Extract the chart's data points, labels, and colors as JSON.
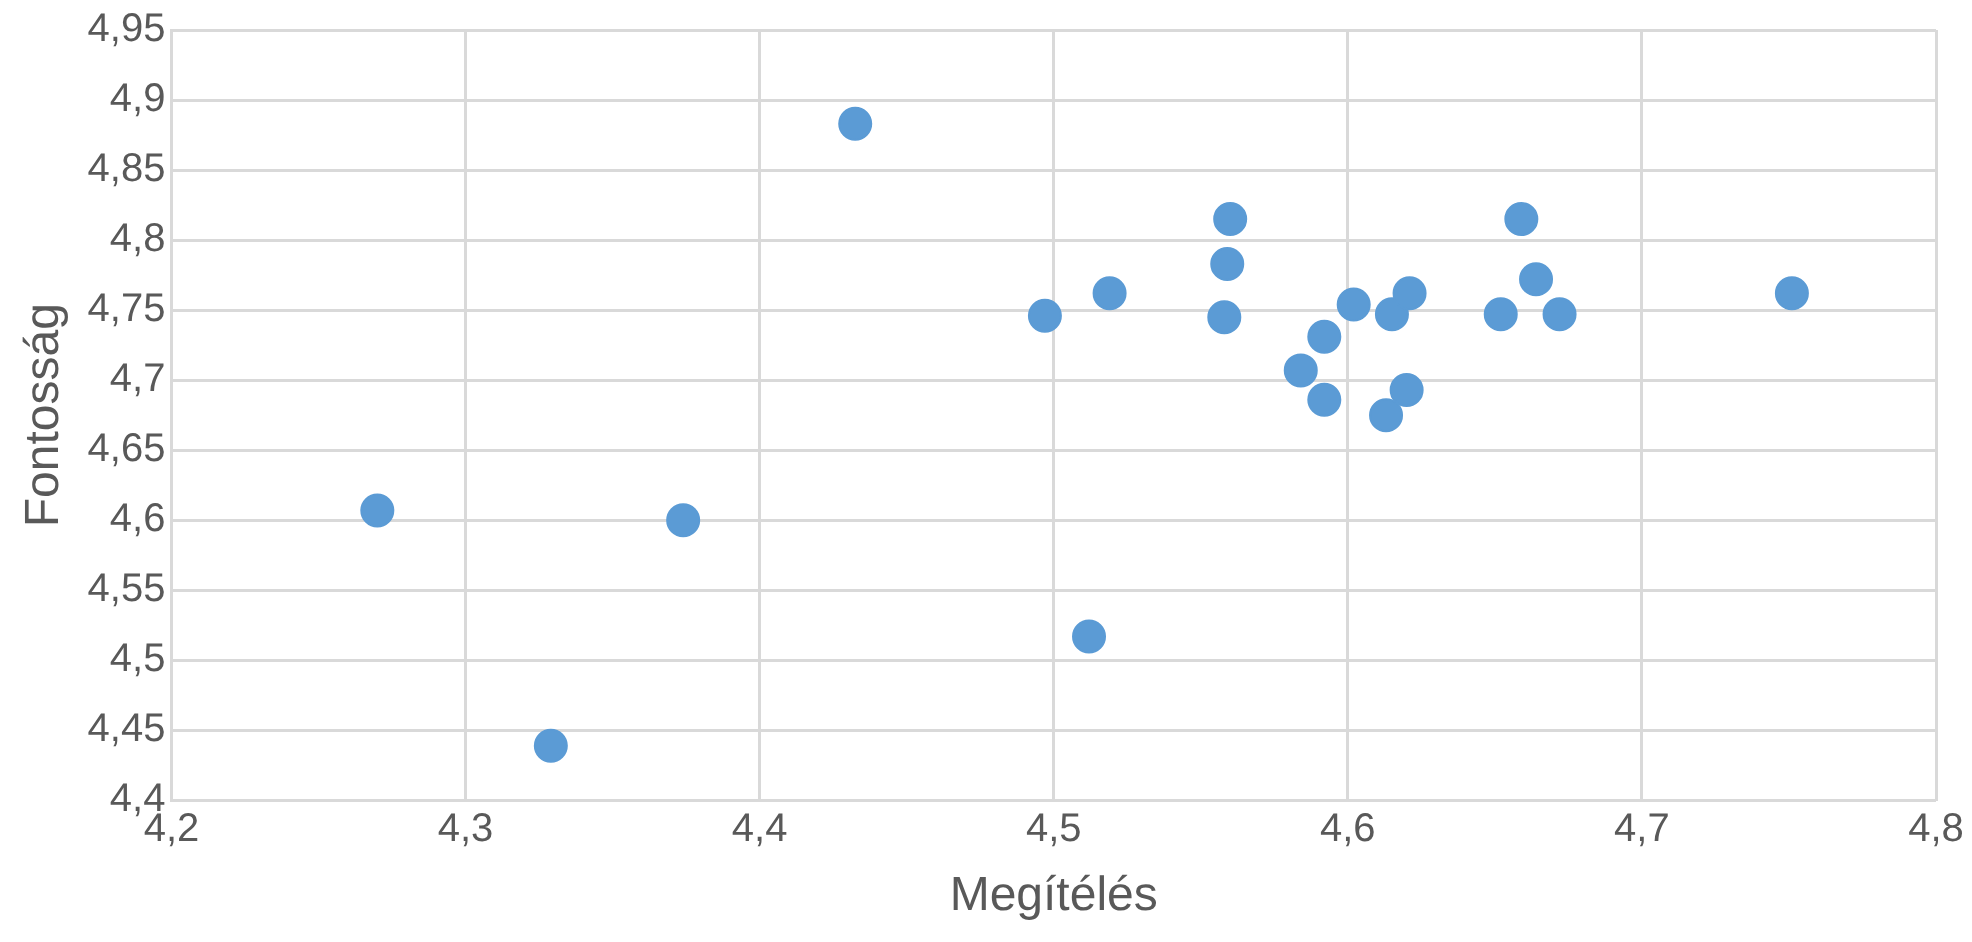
{
  "chart_data": {
    "type": "scatter",
    "xlabel": "Megítélés",
    "ylabel": "Fontosság",
    "x": [
      4.27,
      4.329,
      4.374,
      4.4325,
      4.497,
      4.512,
      4.519,
      4.56,
      4.559,
      4.558,
      4.584,
      4.592,
      4.592,
      4.602,
      4.613,
      4.615,
      4.621,
      4.62,
      4.652,
      4.659,
      4.664,
      4.672,
      4.751
    ],
    "series": [
      {
        "color": "#5b9bd5",
        "values": [
          4.607,
          4.439,
          4.6,
          4.883,
          4.746,
          4.517,
          4.762,
          4.815,
          4.783,
          4.745,
          4.707,
          4.731,
          4.686,
          4.754,
          4.675,
          4.747,
          4.762,
          4.693,
          4.747,
          4.815,
          4.772,
          4.747,
          4.762
        ]
      }
    ],
    "xlim": [
      4.2,
      4.8
    ],
    "xticks": [
      {
        "value": 4.2,
        "label": "4,2"
      },
      {
        "value": 4.3,
        "label": "4,3"
      },
      {
        "value": 4.4,
        "label": "4,4"
      },
      {
        "value": 4.5,
        "label": "4,5"
      },
      {
        "value": 4.6,
        "label": "4,6"
      },
      {
        "value": 4.7,
        "label": "4,7"
      },
      {
        "value": 4.8,
        "label": "4,8"
      }
    ],
    "ylim": [
      4.4,
      4.95
    ],
    "yticks": [
      {
        "value": 4.4,
        "label": "4,4"
      },
      {
        "value": 4.45,
        "label": "4,45"
      },
      {
        "value": 4.5,
        "label": "4,5"
      },
      {
        "value": 4.55,
        "label": "4,55"
      },
      {
        "value": 4.6,
        "label": "4,6"
      },
      {
        "value": 4.65,
        "label": "4,65"
      },
      {
        "value": 4.7,
        "label": "4,7"
      },
      {
        "value": 4.75,
        "label": "4,75"
      },
      {
        "value": 4.8,
        "label": "4,8"
      },
      {
        "value": 4.85,
        "label": "4,85"
      },
      {
        "value": 4.9,
        "label": "4,9"
      },
      {
        "value": 4.95,
        "label": "4,95"
      }
    ],
    "grid": true,
    "legend": false,
    "marker": "circle"
  }
}
